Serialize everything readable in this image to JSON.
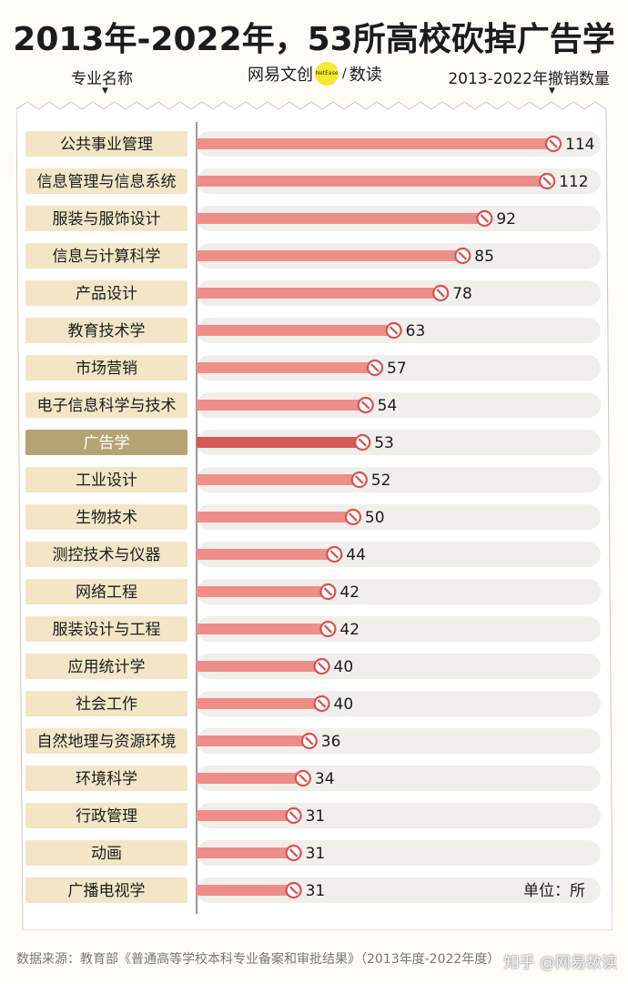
{
  "title": "2013年-2022年，53所高校砍掉广告学",
  "header": {
    "left_label": "专业名称",
    "right_label": "2013-2022年撤销数量",
    "brand_left": "网易文创",
    "brand_dot": "NetEase",
    "brand_right": "数读"
  },
  "colors": {
    "bar": "#ef8e88",
    "bar_highlight": "#d85a58",
    "track": "#f1efec",
    "label_bg": "#f2e6c7",
    "label_highlight_bg": "#b3a472",
    "label_highlight_text": "#ffffff",
    "icon": "#d8524f"
  },
  "chart_data": {
    "type": "bar",
    "orientation": "horizontal",
    "highlight": "广告学",
    "categories": [
      "公共事业管理",
      "信息管理与信息系统",
      "服装与服饰设计",
      "信息与计算科学",
      "产品设计",
      "教育技术学",
      "市场营销",
      "电子信息科学与技术",
      "广告学",
      "工业设计",
      "生物技术",
      "测控技术与仪器",
      "网络工程",
      "服装设计与工程",
      "应用统计学",
      "社会工作",
      "自然地理与资源环境",
      "环境科学",
      "行政管理",
      "动画",
      "广播电视学"
    ],
    "values": [
      114,
      112,
      92,
      85,
      78,
      63,
      57,
      54,
      53,
      52,
      50,
      44,
      42,
      42,
      40,
      40,
      36,
      34,
      31,
      31,
      31
    ],
    "unit_label": "单位：所"
  },
  "footer": {
    "source": "数据来源：教育部《普通高等学校本科专业备案和审批结果》（2013年度-2022年度）",
    "watermark": "知乎 @网易数读"
  }
}
